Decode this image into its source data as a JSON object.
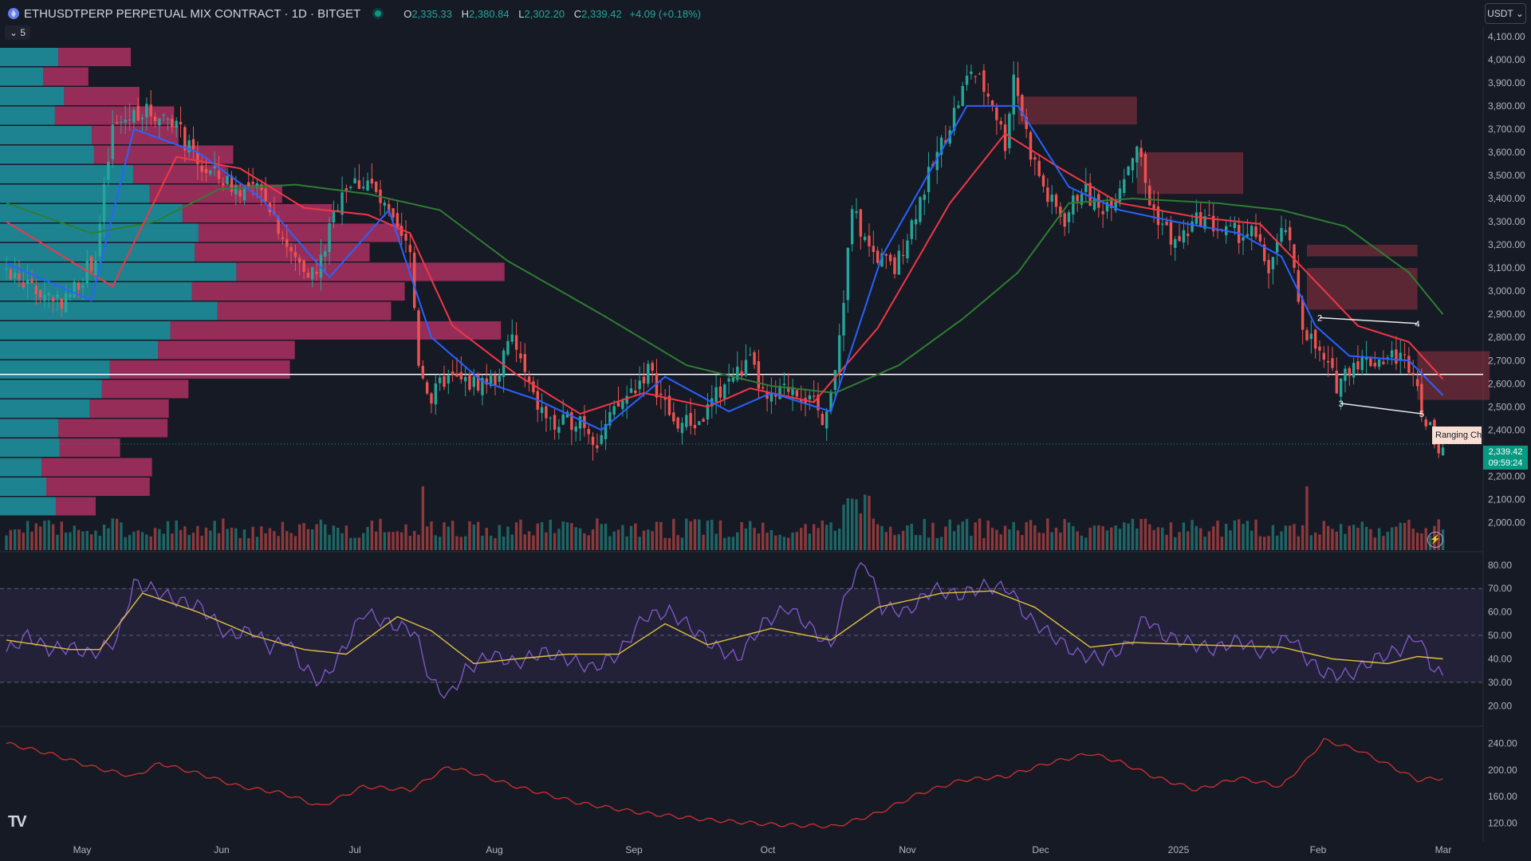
{
  "header": {
    "symbol": "ETHUSDTPERP PERPETUAL MIX CONTRACT · 1D · BITGET",
    "open_label": "O",
    "open": "2,335.33",
    "high_label": "H",
    "high": "2,380.84",
    "low_label": "L",
    "low": "2,302.20",
    "close_label": "C",
    "close": "2,339.42",
    "change": "+4.09 (+0.18%)",
    "collapse_count": "5"
  },
  "currency": "USDT ⌄",
  "last_price": {
    "price": "2,339.42",
    "countdown": "09:59:24"
  },
  "range_label": "Ranging Ch",
  "tv_logo": "TV",
  "colors": {
    "background": "#161a25",
    "up": "#26a69a",
    "down": "#ef5350",
    "ema_fast": "#2962ff",
    "ema_mid": "#f23645",
    "ema_slow": "#2e7d32",
    "rsi": "#7e57c2",
    "rsi_ma": "#e0c040",
    "indicator3": "#d32f2f",
    "vp_up": "#22a7b5",
    "vp_down": "#c2346b"
  },
  "chart_data": [
    {
      "type": "candlestick",
      "name": "price",
      "ylim": [
        1950,
        4120
      ],
      "y_ticks": [
        "2,000.00",
        "2,100.00",
        "2,200.00",
        "2,300.00",
        "2,400.00",
        "2,500.00",
        "2,600.00",
        "2,700.00",
        "2,800.00",
        "2,900.00",
        "3,000.00",
        "3,100.00",
        "3,200.00",
        "3,300.00",
        "3,400.00",
        "3,500.00",
        "3,600.00",
        "3,700.00",
        "3,800.00",
        "3,900.00",
        "4,000.00",
        "4,100.00"
      ],
      "x_labels": [
        "May",
        "Jun",
        "Jul",
        "Aug",
        "Sep",
        "Oct",
        "Nov",
        "Dec",
        "2025",
        "Feb",
        "Mar"
      ],
      "anchors": [
        {
          "day": 0,
          "price": 3100
        },
        {
          "day": 8,
          "price": 3000
        },
        {
          "day": 15,
          "price": 2960
        },
        {
          "day": 22,
          "price": 3150
        },
        {
          "day": 26,
          "price": 3700
        },
        {
          "day": 32,
          "price": 3780
        },
        {
          "day": 40,
          "price": 3750
        },
        {
          "day": 46,
          "price": 3540
        },
        {
          "day": 55,
          "price": 3450
        },
        {
          "day": 62,
          "price": 3420
        },
        {
          "day": 68,
          "price": 3150
        },
        {
          "day": 74,
          "price": 3070
        },
        {
          "day": 80,
          "price": 3450
        },
        {
          "day": 86,
          "price": 3480
        },
        {
          "day": 92,
          "price": 3280
        },
        {
          "day": 96,
          "price": 3160
        },
        {
          "day": 98,
          "price": 2700
        },
        {
          "day": 101,
          "price": 2530
        },
        {
          "day": 104,
          "price": 2620
        },
        {
          "day": 110,
          "price": 2600
        },
        {
          "day": 116,
          "price": 2620
        },
        {
          "day": 120,
          "price": 2800
        },
        {
          "day": 125,
          "price": 2530
        },
        {
          "day": 130,
          "price": 2410
        },
        {
          "day": 136,
          "price": 2460
        },
        {
          "day": 140,
          "price": 2350
        },
        {
          "day": 145,
          "price": 2500
        },
        {
          "day": 152,
          "price": 2660
        },
        {
          "day": 158,
          "price": 2430
        },
        {
          "day": 164,
          "price": 2430
        },
        {
          "day": 170,
          "price": 2600
        },
        {
          "day": 176,
          "price": 2690
        },
        {
          "day": 180,
          "price": 2510
        },
        {
          "day": 186,
          "price": 2600
        },
        {
          "day": 190,
          "price": 2520
        },
        {
          "day": 193,
          "price": 2460
        },
        {
          "day": 196,
          "price": 2620
        },
        {
          "day": 200,
          "price": 3350
        },
        {
          "day": 204,
          "price": 3180
        },
        {
          "day": 210,
          "price": 3090
        },
        {
          "day": 216,
          "price": 3400
        },
        {
          "day": 222,
          "price": 3680
        },
        {
          "day": 228,
          "price": 3960
        },
        {
          "day": 233,
          "price": 3820
        },
        {
          "day": 236,
          "price": 3640
        },
        {
          "day": 238,
          "price": 3940
        },
        {
          "day": 242,
          "price": 3600
        },
        {
          "day": 246,
          "price": 3400
        },
        {
          "day": 250,
          "price": 3310
        },
        {
          "day": 254,
          "price": 3450
        },
        {
          "day": 258,
          "price": 3350
        },
        {
          "day": 262,
          "price": 3420
        },
        {
          "day": 267,
          "price": 3640
        },
        {
          "day": 270,
          "price": 3380
        },
        {
          "day": 276,
          "price": 3200
        },
        {
          "day": 282,
          "price": 3320
        },
        {
          "day": 288,
          "price": 3250
        },
        {
          "day": 294,
          "price": 3250
        },
        {
          "day": 298,
          "price": 3100
        },
        {
          "day": 302,
          "price": 3280
        },
        {
          "day": 306,
          "price": 2860
        },
        {
          "day": 310,
          "price": 2720
        },
        {
          "day": 314,
          "price": 2600
        },
        {
          "day": 318,
          "price": 2700
        },
        {
          "day": 322,
          "price": 2700
        },
        {
          "day": 328,
          "price": 2720
        },
        {
          "day": 332,
          "price": 2680
        },
        {
          "day": 335,
          "price": 2420
        },
        {
          "day": 338,
          "price": 2340
        }
      ],
      "ema_fast": [
        [
          0,
          3120
        ],
        [
          20,
          2960
        ],
        [
          30,
          3700
        ],
        [
          45,
          3600
        ],
        [
          60,
          3400
        ],
        [
          76,
          3060
        ],
        [
          90,
          3350
        ],
        [
          100,
          2800
        ],
        [
          112,
          2610
        ],
        [
          125,
          2530
        ],
        [
          140,
          2400
        ],
        [
          155,
          2630
        ],
        [
          170,
          2480
        ],
        [
          180,
          2560
        ],
        [
          194,
          2480
        ],
        [
          206,
          3150
        ],
        [
          226,
          3800
        ],
        [
          238,
          3800
        ],
        [
          250,
          3450
        ],
        [
          262,
          3350
        ],
        [
          275,
          3300
        ],
        [
          290,
          3250
        ],
        [
          300,
          3150
        ],
        [
          308,
          2850
        ],
        [
          316,
          2720
        ],
        [
          330,
          2700
        ],
        [
          338,
          2550
        ]
      ],
      "ema_mid": [
        [
          0,
          3300
        ],
        [
          25,
          3020
        ],
        [
          40,
          3580
        ],
        [
          55,
          3530
        ],
        [
          70,
          3360
        ],
        [
          85,
          3330
        ],
        [
          95,
          3250
        ],
        [
          105,
          2850
        ],
        [
          120,
          2640
        ],
        [
          135,
          2470
        ],
        [
          150,
          2560
        ],
        [
          165,
          2500
        ],
        [
          175,
          2580
        ],
        [
          190,
          2520
        ],
        [
          205,
          2840
        ],
        [
          222,
          3380
        ],
        [
          235,
          3680
        ],
        [
          248,
          3530
        ],
        [
          262,
          3380
        ],
        [
          280,
          3320
        ],
        [
          295,
          3290
        ],
        [
          305,
          3100
        ],
        [
          318,
          2850
        ],
        [
          330,
          2780
        ],
        [
          338,
          2620
        ]
      ],
      "ema_slow": [
        [
          0,
          3380
        ],
        [
          20,
          3250
        ],
        [
          35,
          3300
        ],
        [
          50,
          3440
        ],
        [
          68,
          3460
        ],
        [
          85,
          3420
        ],
        [
          102,
          3350
        ],
        [
          118,
          3130
        ],
        [
          140,
          2900
        ],
        [
          160,
          2680
        ],
        [
          180,
          2590
        ],
        [
          195,
          2560
        ],
        [
          210,
          2680
        ],
        [
          225,
          2880
        ],
        [
          238,
          3080
        ],
        [
          250,
          3380
        ],
        [
          265,
          3400
        ],
        [
          285,
          3380
        ],
        [
          300,
          3350
        ],
        [
          315,
          3280
        ],
        [
          330,
          3080
        ],
        [
          338,
          2900
        ]
      ],
      "box_zones": [
        {
          "day0": 238,
          "day1": 266,
          "p0": 3720,
          "p1": 3840,
          "kind": "supply"
        },
        {
          "day0": 266,
          "day1": 291,
          "p0": 3420,
          "p1": 3600,
          "kind": "supply"
        },
        {
          "day0": 306,
          "day1": 332,
          "p0": 3150,
          "p1": 3200,
          "kind": "supply"
        },
        {
          "day0": 306,
          "day1": 332,
          "p0": 2920,
          "p1": 3100,
          "kind": "supply"
        },
        {
          "day0": 332,
          "day1": 349,
          "p0": 2530,
          "p1": 2740,
          "kind": "supply"
        }
      ],
      "hline": 2640,
      "current_price_line": 2339.42,
      "pattern_points": [
        {
          "label": "2",
          "day": 309,
          "price": 2885
        },
        {
          "label": "4",
          "day": 332,
          "price": 2860
        },
        {
          "label": "3",
          "day": 314,
          "price": 2515
        },
        {
          "label": "5",
          "day": 333,
          "price": 2470
        }
      ]
    },
    {
      "type": "line",
      "name": "RSI",
      "ylim": [
        15,
        83
      ],
      "y_ticks": [
        "20.00",
        "30.00",
        "40.00",
        "50.00",
        "60.00",
        "70.00",
        "80.00"
      ],
      "bands": [
        30,
        50,
        70
      ],
      "rsi_anchors": [
        [
          0,
          43
        ],
        [
          5,
          50
        ],
        [
          10,
          44
        ],
        [
          15,
          45
        ],
        [
          20,
          42
        ],
        [
          26,
          48
        ],
        [
          30,
          72
        ],
        [
          34,
          70
        ],
        [
          40,
          65
        ],
        [
          46,
          62
        ],
        [
          52,
          50
        ],
        [
          58,
          52
        ],
        [
          62,
          45
        ],
        [
          66,
          48
        ],
        [
          70,
          36
        ],
        [
          74,
          30
        ],
        [
          78,
          40
        ],
        [
          84,
          60
        ],
        [
          90,
          55
        ],
        [
          96,
          52
        ],
        [
          100,
          30
        ],
        [
          104,
          24
        ],
        [
          108,
          35
        ],
        [
          114,
          42
        ],
        [
          120,
          38
        ],
        [
          126,
          43
        ],
        [
          132,
          40
        ],
        [
          138,
          36
        ],
        [
          144,
          42
        ],
        [
          150,
          58
        ],
        [
          156,
          60
        ],
        [
          160,
          55
        ],
        [
          166,
          46
        ],
        [
          172,
          40
        ],
        [
          178,
          55
        ],
        [
          184,
          62
        ],
        [
          190,
          52
        ],
        [
          194,
          45
        ],
        [
          198,
          70
        ],
        [
          202,
          82
        ],
        [
          206,
          62
        ],
        [
          212,
          60
        ],
        [
          218,
          70
        ],
        [
          224,
          67
        ],
        [
          230,
          71
        ],
        [
          236,
          70
        ],
        [
          240,
          58
        ],
        [
          246,
          50
        ],
        [
          252,
          42
        ],
        [
          258,
          40
        ],
        [
          264,
          46
        ],
        [
          268,
          58
        ],
        [
          272,
          50
        ],
        [
          278,
          47
        ],
        [
          284,
          44
        ],
        [
          290,
          48
        ],
        [
          296,
          42
        ],
        [
          302,
          50
        ],
        [
          306,
          40
        ],
        [
          310,
          34
        ],
        [
          316,
          33
        ],
        [
          322,
          40
        ],
        [
          328,
          44
        ],
        [
          332,
          50
        ],
        [
          335,
          38
        ],
        [
          338,
          32
        ]
      ],
      "rsi_ma_anchors": [
        [
          0,
          48
        ],
        [
          15,
          44
        ],
        [
          22,
          44
        ],
        [
          32,
          68
        ],
        [
          45,
          60
        ],
        [
          58,
          50
        ],
        [
          70,
          44
        ],
        [
          80,
          42
        ],
        [
          92,
          58
        ],
        [
          100,
          52
        ],
        [
          110,
          38
        ],
        [
          120,
          40
        ],
        [
          132,
          42
        ],
        [
          144,
          42
        ],
        [
          155,
          55
        ],
        [
          165,
          46
        ],
        [
          180,
          53
        ],
        [
          194,
          48
        ],
        [
          205,
          62
        ],
        [
          220,
          68
        ],
        [
          232,
          69
        ],
        [
          242,
          62
        ],
        [
          255,
          45
        ],
        [
          265,
          47
        ],
        [
          280,
          46
        ],
        [
          300,
          45
        ],
        [
          312,
          40
        ],
        [
          325,
          38
        ],
        [
          332,
          41
        ],
        [
          338,
          40
        ]
      ]
    },
    {
      "type": "line",
      "name": "indicator3",
      "ylim": [
        105,
        255
      ],
      "y_ticks": [
        "120.00",
        "160.00",
        "200.00",
        "240.00"
      ],
      "anchors": [
        [
          0,
          240
        ],
        [
          10,
          225
        ],
        [
          20,
          205
        ],
        [
          30,
          190
        ],
        [
          36,
          210
        ],
        [
          45,
          195
        ],
        [
          55,
          175
        ],
        [
          65,
          165
        ],
        [
          74,
          145
        ],
        [
          84,
          175
        ],
        [
          95,
          170
        ],
        [
          104,
          205
        ],
        [
          110,
          195
        ],
        [
          120,
          175
        ],
        [
          135,
          150
        ],
        [
          150,
          135
        ],
        [
          165,
          125
        ],
        [
          180,
          118
        ],
        [
          195,
          115
        ],
        [
          205,
          135
        ],
        [
          215,
          165
        ],
        [
          225,
          185
        ],
        [
          235,
          190
        ],
        [
          245,
          210
        ],
        [
          255,
          225
        ],
        [
          262,
          212
        ],
        [
          270,
          190
        ],
        [
          280,
          170
        ],
        [
          290,
          188
        ],
        [
          300,
          175
        ],
        [
          306,
          215
        ],
        [
          310,
          245
        ],
        [
          318,
          230
        ],
        [
          326,
          205
        ],
        [
          332,
          185
        ],
        [
          338,
          188
        ]
      ]
    }
  ]
}
